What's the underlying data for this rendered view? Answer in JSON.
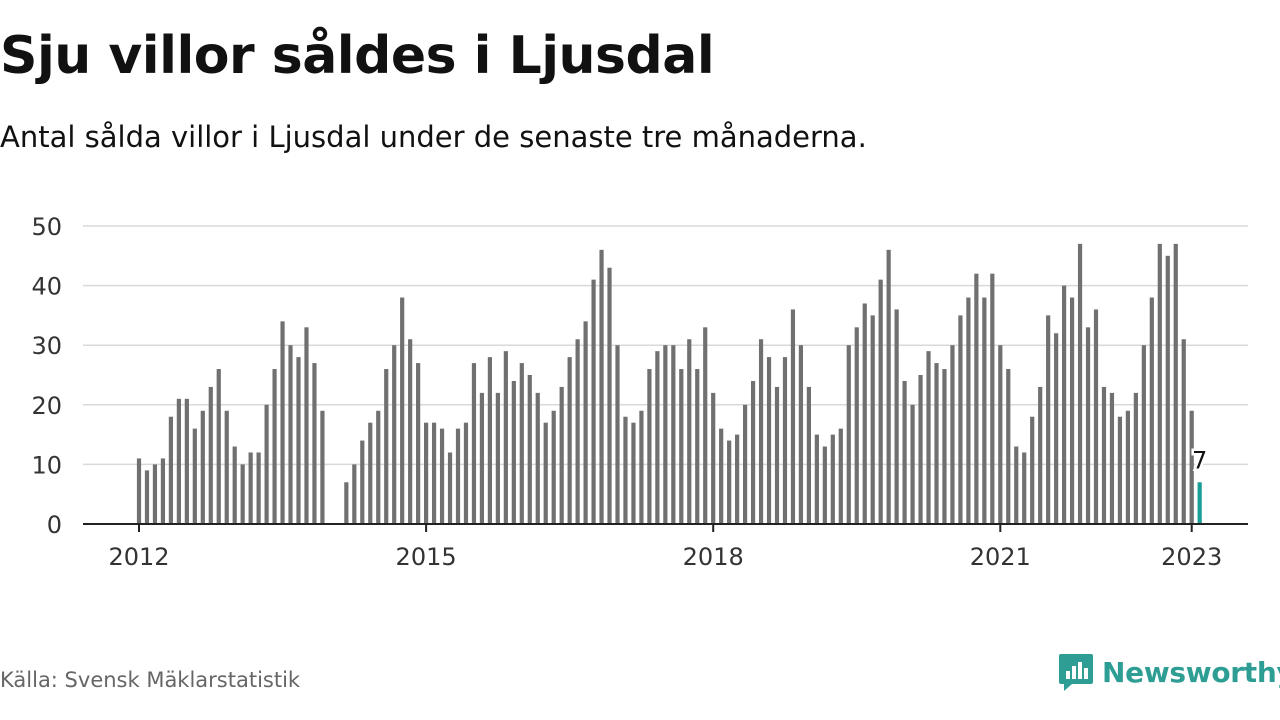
{
  "title": "Sju villor såldes i Ljusdal",
  "subtitle": "Antal sålda villor i Ljusdal under de senaste tre månaderna.",
  "source": "Källa: Svensk Mäklarstatistik",
  "brand": "Newsworthy",
  "colors": {
    "bar": "#707070",
    "highlight": "#1a9e96",
    "brand": "#2e9e95",
    "grid": "#d9d9d9"
  },
  "chart_data": {
    "type": "bar",
    "title": "Sju villor såldes i Ljusdal",
    "subtitle": "Antal sålda villor i Ljusdal under de senaste tre månaderna.",
    "xlabel": "",
    "ylabel": "",
    "ylim": [
      0,
      50
    ],
    "yticks": [
      0,
      10,
      20,
      30,
      40,
      50
    ],
    "xticks": [
      "2012",
      "2015",
      "2018",
      "2021",
      "2023"
    ],
    "grid": true,
    "start": "2012-01",
    "end": "2023-01",
    "values": [
      11,
      9,
      10,
      11,
      18,
      21,
      21,
      16,
      19,
      23,
      26,
      19,
      13,
      10,
      12,
      12,
      20,
      26,
      34,
      30,
      28,
      33,
      27,
      19,
      null,
      null,
      7,
      10,
      14,
      17,
      19,
      26,
      30,
      38,
      31,
      27,
      17,
      17,
      16,
      12,
      16,
      17,
      27,
      22,
      28,
      22,
      29,
      24,
      27,
      25,
      22,
      17,
      19,
      23,
      28,
      31,
      34,
      41,
      46,
      43,
      30,
      18,
      17,
      19,
      26,
      29,
      30,
      30,
      26,
      31,
      26,
      33,
      22,
      16,
      14,
      15,
      20,
      24,
      31,
      28,
      23,
      28,
      36,
      30,
      23,
      15,
      13,
      15,
      16,
      30,
      33,
      37,
      35,
      41,
      46,
      36,
      24,
      20,
      25,
      29,
      27,
      26,
      30,
      35,
      38,
      42,
      38,
      42,
      30,
      26,
      13,
      12,
      18,
      23,
      35,
      32,
      40,
      38,
      47,
      33,
      36,
      23,
      22,
      18,
      19,
      22,
      30,
      38,
      47,
      45,
      47,
      31,
      19,
      7
    ],
    "highlight_last": true,
    "annotation": {
      "label": "7",
      "value": 7
    }
  }
}
